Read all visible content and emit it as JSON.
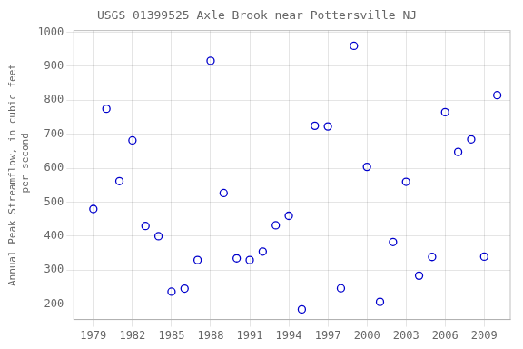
{
  "chart_data": {
    "type": "scatter",
    "title": "USGS 01399525 Axle Brook near Pottersville NJ",
    "ylabel": [
      "Annual Peak Streamflow, in cubic feet",
      "    per second"
    ],
    "x": [
      1979,
      1980,
      1981,
      1982,
      1983,
      1984,
      1985,
      1986,
      1987,
      1988,
      1989,
      1990,
      1991,
      1992,
      1993,
      1994,
      1995,
      1996,
      1997,
      1998,
      1999,
      2000,
      2001,
      2002,
      2003,
      2004,
      2005,
      2006,
      2007,
      2008,
      2009,
      2010
    ],
    "values": [
      480,
      775,
      562,
      682,
      430,
      400,
      237,
      246,
      330,
      916,
      527,
      335,
      330,
      355,
      432,
      460,
      185,
      725,
      723,
      247,
      960,
      604,
      207,
      383,
      560,
      284,
      339,
      765,
      648,
      685,
      340,
      815
    ],
    "xlim": [
      1977.5,
      2011
    ],
    "ylim": [
      155,
      1005
    ],
    "xticks": [
      1979,
      1982,
      1985,
      1988,
      1991,
      1994,
      1997,
      2000,
      2003,
      2006,
      2009
    ],
    "yticks": [
      200,
      300,
      400,
      500,
      600,
      700,
      800,
      900,
      1000
    ],
    "color": "#0000cc",
    "marker": "circle_open",
    "grid": true
  }
}
